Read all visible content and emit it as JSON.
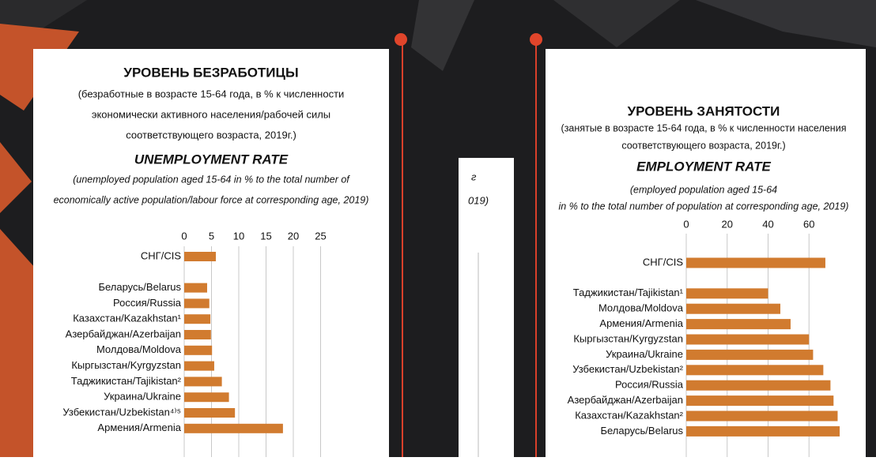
{
  "chart_data": [
    {
      "type": "bar",
      "orientation": "horizontal",
      "title": "УРОВЕНЬ БЕЗРАБОТИЦЫ",
      "subtitle": [
        "(безработные в возрасте 15-64 года, в % к численности",
        "экономически активного населения/рабочей силы",
        "соответствующего возраста, 2019г.)"
      ],
      "title_en": "UNEMPLOYMENT RATE",
      "subtitle_en": [
        "(unemployed population aged 15-64 in % to the total number of",
        "economically active population/labour force at corresponding age, 2019)"
      ],
      "categories": [
        "СНГ/CIS",
        null,
        "Беларусь/Belarus",
        "Россия/Russia",
        "Казахстан/Kazakhstan¹",
        "Азербайджан/Azerbaijan",
        "Молдова/Moldova",
        "Кыргызстан/Kyrgyzstan",
        "Таджикистан/Tajikistan²",
        "Украина/Ukraine",
        "Узбекистан/Uzbekistan⁴⁾⁵",
        "Армения/Armenia"
      ],
      "values": [
        5.8,
        null,
        4.2,
        4.6,
        4.8,
        4.9,
        5.1,
        5.5,
        6.9,
        8.2,
        9.3,
        18.1
      ],
      "color": "#d17b2f",
      "xlim": [
        0,
        30
      ],
      "xticks": [
        0,
        5,
        10,
        15,
        20,
        25
      ],
      "grid": true
    },
    {
      "type": "bar",
      "orientation": "horizontal",
      "title": "УРОВЕНЬ ЗАНЯТОСТИ",
      "subtitle": [
        "(занятые в возрасте 15-64 года, в % к численности населения",
        "соответствующего возраста, 2019г.)"
      ],
      "title_en": "EMPLOYMENT RATE",
      "subtitle_en": [
        "(employed population aged 15-64",
        "in % to the total number of  population at corresponding age, 2019)"
      ],
      "categories": [
        "СНГ/CIS",
        null,
        "Таджикистан/Tajikistan¹",
        "Молдова/Moldova",
        "Армения/Armenia",
        "Кыргызстан/Kyrgyzstan",
        "Украина/Ukraine",
        "Узбекистан/Uzbekistan²",
        "Россия/Russia",
        "Азербайджан/Azerbaijan",
        "Казахстан/Kazakhstan²",
        "Беларусь/Belarus"
      ],
      "values": [
        68,
        null,
        40,
        46,
        51,
        60,
        62,
        67,
        70.5,
        72,
        74,
        75
      ],
      "color": "#d17b2f",
      "xlim": [
        0,
        80
      ],
      "xticks": [
        0,
        20,
        40,
        60
      ],
      "grid": true
    }
  ],
  "fragments": [
    "г",
    "019)"
  ]
}
